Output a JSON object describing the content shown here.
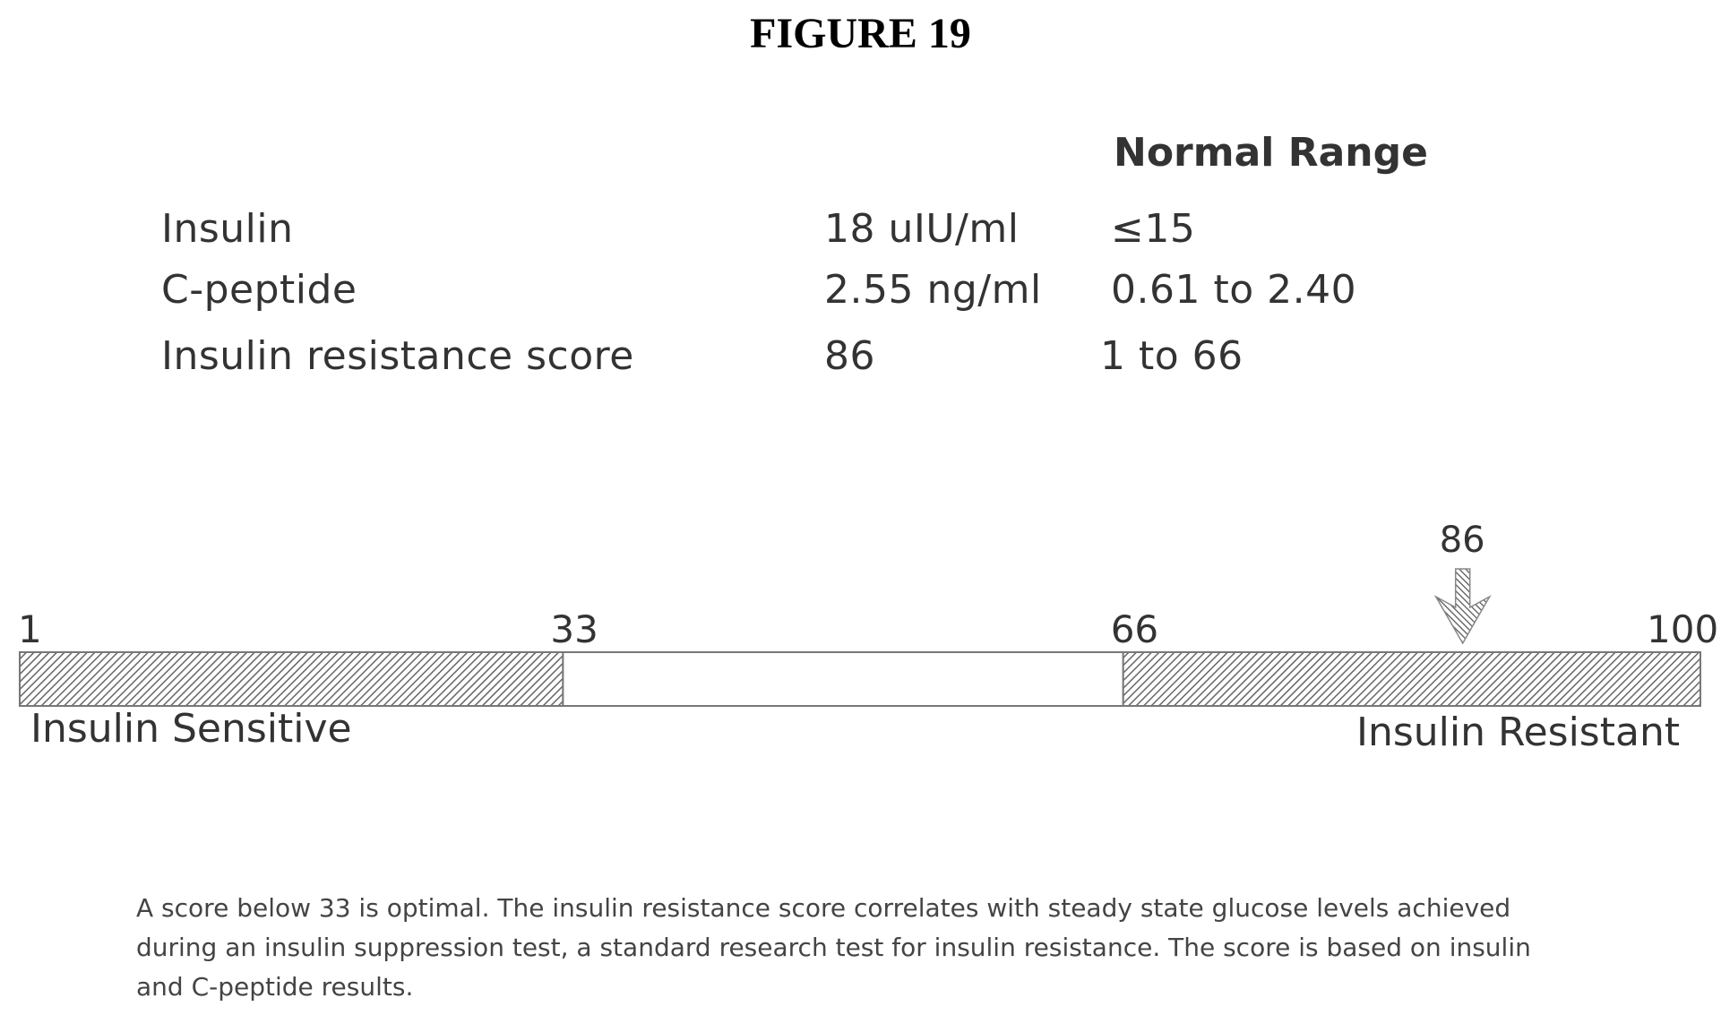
{
  "figure": {
    "title": "FIGURE 19"
  },
  "results": {
    "normal_range_header": "Normal Range",
    "rows": [
      {
        "analyte": "Insulin",
        "value": "18 uIU/ml",
        "normal_range": "≤15"
      },
      {
        "analyte": "C-peptide",
        "value": "2.55  ng/ml",
        "normal_range": "0.61 to 2.40"
      },
      {
        "analyte": "Insulin resistance score",
        "value": "86",
        "normal_range": "1 to 66"
      }
    ]
  },
  "scale": {
    "min": 1,
    "max": 100,
    "ticks": [
      "1",
      "33",
      "66",
      "100"
    ],
    "tick_values": [
      1,
      33,
      66,
      100
    ],
    "segments": [
      {
        "from": 1,
        "to": 33,
        "pattern": "hatched"
      },
      {
        "from": 33,
        "to": 66,
        "pattern": "blank"
      },
      {
        "from": 66,
        "to": 100,
        "pattern": "hatched"
      }
    ],
    "left_label": "Insulin Sensitive",
    "right_label": "Insulin Resistant",
    "marker_value": 86,
    "marker_label": "86"
  },
  "footnote": "A score below 33 is optimal. The insulin resistance score correlates with steady state glucose levels achieved during an insulin suppression test, a standard research test for insulin resistance. The score is based on insulin and C-peptide results."
}
